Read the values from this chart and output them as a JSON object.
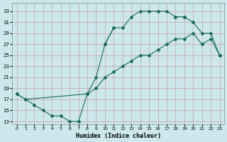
{
  "xlabel": "Humidex (Indice chaleur)",
  "xlim": [
    -0.5,
    23.5
  ],
  "ylim": [
    12.5,
    34.5
  ],
  "yticks": [
    13,
    15,
    17,
    19,
    21,
    23,
    25,
    27,
    29,
    31,
    33
  ],
  "xticks": [
    0,
    1,
    2,
    3,
    4,
    5,
    6,
    7,
    8,
    9,
    10,
    11,
    12,
    13,
    14,
    15,
    16,
    17,
    18,
    19,
    20,
    21,
    22,
    23
  ],
  "bg_color": "#cce8ec",
  "line_color": "#1a6b5e",
  "grid_color": "#b8d8dc",
  "curve1_x": [
    0,
    1,
    2,
    3,
    4,
    5,
    6,
    7,
    8,
    9,
    10,
    11
  ],
  "curve1_y": [
    18,
    17,
    16,
    15,
    14,
    14,
    13,
    13,
    18,
    21,
    27,
    30
  ],
  "curve2_x": [
    10,
    11,
    12,
    13,
    14,
    15,
    16,
    17,
    18,
    19
  ],
  "curve2_y": [
    27,
    30,
    30,
    32,
    33,
    33,
    33,
    33,
    32,
    32
  ],
  "curve3_x": [
    0,
    1,
    8,
    9,
    10,
    11,
    12,
    13,
    14,
    15,
    16,
    17,
    18,
    19,
    20,
    21,
    22,
    23
  ],
  "curve3_y": [
    18,
    17,
    18,
    19,
    21,
    22,
    23,
    24,
    25,
    25,
    26,
    27,
    28,
    28,
    29,
    27,
    28,
    25
  ],
  "curve4_x": [
    18,
    19,
    20,
    21,
    22,
    23
  ],
  "curve4_y": [
    32,
    32,
    31,
    29,
    29,
    25
  ]
}
